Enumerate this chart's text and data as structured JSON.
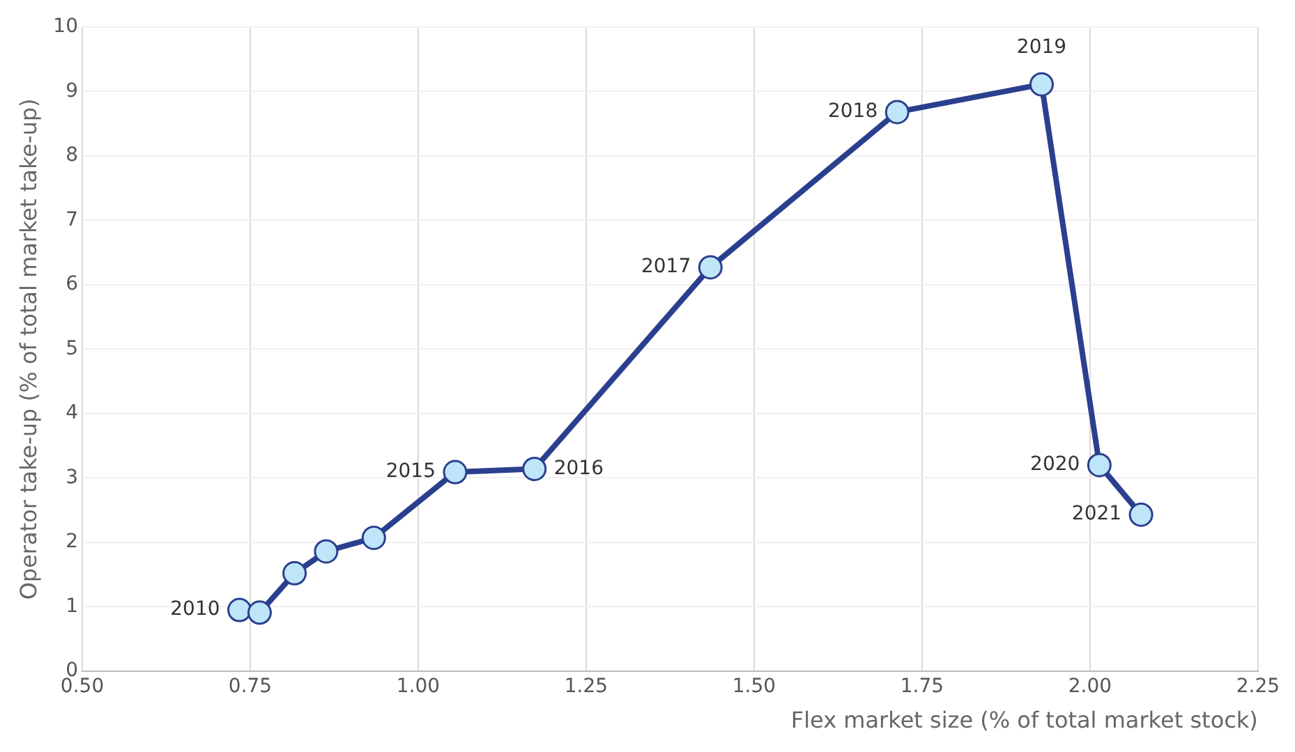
{
  "chart_data": {
    "type": "line",
    "xlabel": "Flex market size (% of total market stock)",
    "ylabel": "Operator take-up (% of total market take-up)",
    "series": [
      {
        "color": "#2b3f8f",
        "x": [
          0.734,
          0.764,
          0.816,
          0.863,
          0.934,
          1.055,
          1.173,
          1.435,
          1.713,
          1.928,
          2.014,
          2.076
        ],
        "values": [
          0.95,
          0.91,
          1.52,
          1.86,
          2.07,
          3.09,
          3.14,
          6.27,
          8.68,
          9.11,
          3.2,
          2.43
        ]
      }
    ],
    "xlim": [
      0.5,
      2.25
    ],
    "xticks": [
      {
        "value": 0.5,
        "label": "0.50"
      },
      {
        "value": 0.75,
        "label": "0.75"
      },
      {
        "value": 1,
        "label": "1.00"
      },
      {
        "value": 1.25,
        "label": "1.25"
      },
      {
        "value": 1.5,
        "label": "1.50"
      },
      {
        "value": 1.75,
        "label": "1.75"
      },
      {
        "value": 2,
        "label": "2.00"
      },
      {
        "value": 2.25,
        "label": "2.25"
      }
    ],
    "ylim": [
      0,
      10
    ],
    "yticks": [
      0,
      1,
      2,
      3,
      4,
      5,
      6,
      7,
      8,
      9,
      10
    ],
    "annotations": [
      {
        "text": "2010",
        "x": 0.734,
        "y": 0.95
      },
      {
        "text": "2015",
        "x": 1.055,
        "y": 3.09
      },
      {
        "text": "2016",
        "x": 1.173,
        "y": 3.14
      },
      {
        "text": "2017",
        "x": 1.435,
        "y": 6.27
      },
      {
        "text": "2018",
        "x": 1.713,
        "y": 8.68
      },
      {
        "text": "2019",
        "x": 1.928,
        "y": 9.11
      },
      {
        "text": "2020",
        "x": 2.014,
        "y": 3.2
      },
      {
        "text": "2021",
        "x": 2.076,
        "y": 2.43
      }
    ],
    "grid": true,
    "legend": false,
    "marker": "circle",
    "line_style": "solid"
  }
}
